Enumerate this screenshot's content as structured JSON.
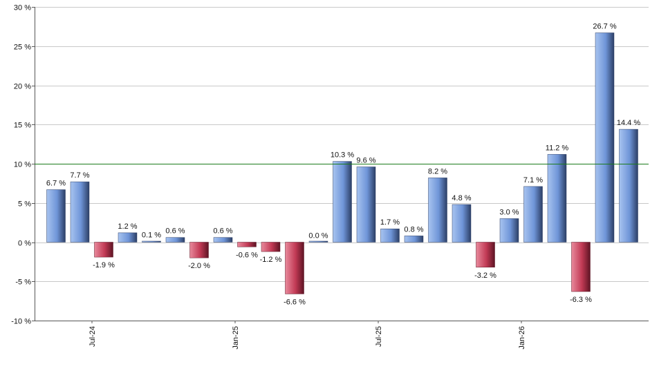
{
  "chart_data": {
    "type": "bar",
    "categories": [
      "",
      "Jul-24",
      "",
      "",
      "",
      "",
      "",
      "Jan-25",
      "",
      "",
      "",
      "",
      "",
      "Jul-25",
      "",
      "",
      "",
      "",
      "",
      "Jan-26",
      "",
      "",
      "",
      "",
      ""
    ],
    "values": [
      6.7,
      7.7,
      -1.9,
      1.2,
      0.1,
      0.6,
      -2.0,
      0.6,
      -0.6,
      -1.2,
      -6.6,
      0.0,
      10.3,
      9.6,
      1.7,
      0.8,
      8.2,
      4.8,
      -3.2,
      3.0,
      7.1,
      11.2,
      -6.3,
      26.7,
      14.4
    ],
    "value_labels": [
      "6.7 %",
      "7.7 %",
      "-1.9 %",
      "1.2 %",
      "0.1 %",
      "0.6 %",
      "-2.0 %",
      "0.6 %",
      "-0.6 %",
      "-1.2 %",
      "-6.6 %",
      "0.0 %",
      "10.3 %",
      "9.6 %",
      "1.7 %",
      "0.8 %",
      "8.2 %",
      "4.8 %",
      "-3.2 %",
      "3.0 %",
      "7.1 %",
      "11.2 %",
      "-6.3 %",
      "26.7 %",
      "14.4 %"
    ],
    "x_tick_labels": [
      {
        "index": 2,
        "label": "Jul-24"
      },
      {
        "index": 8,
        "label": "Jan-25"
      },
      {
        "index": 14,
        "label": "Jul-25"
      },
      {
        "index": 20,
        "label": "Jan-26"
      }
    ],
    "y_ticks": [
      -10,
      -5,
      0,
      5,
      10,
      15,
      20,
      25,
      30
    ],
    "y_tick_labels": [
      "-10 %",
      "-5 %",
      "0 %",
      "5 %",
      "10 %",
      "15 %",
      "20 %",
      "25 %",
      "30 %"
    ],
    "ylim": [
      -10,
      30
    ],
    "reference_line": 10,
    "grid": true,
    "title": "",
    "xlabel": "",
    "ylabel": "",
    "colors": {
      "positive_light": "#a8c4f0",
      "positive_mid": "#6f95d8",
      "positive_dark": "#2c3f66",
      "negative_light": "#e88a9c",
      "negative_mid": "#c23a55",
      "negative_dark": "#5e1424",
      "reference_line": "#1a7a1a",
      "grid": "#c8c8c8"
    }
  }
}
